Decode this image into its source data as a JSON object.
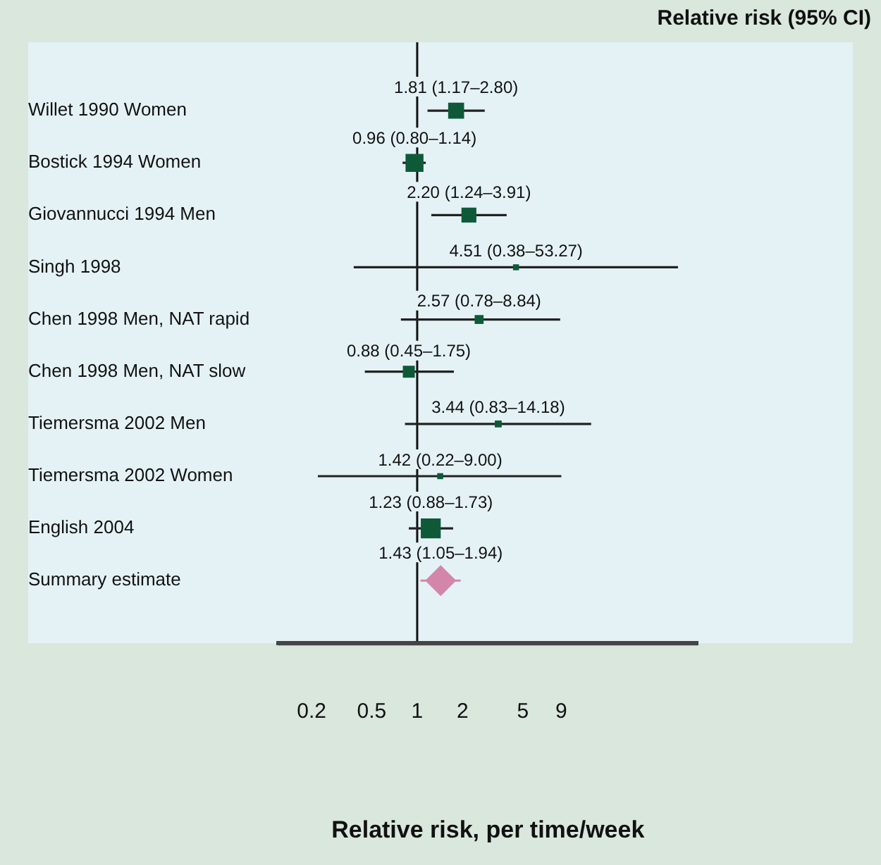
{
  "chart_data": {
    "type": "bubble",
    "orientation": "horizontal",
    "xlabel": "Relative risk, per time/week",
    "annotations": [
      "Relative risk (95% CI)"
    ],
    "categories": [
      "Willet 1990 Women",
      "Bostick 1994 Women",
      "Giovannucci 1994 Men",
      "Singh 1998",
      "Chen 1998 Men, NAT rapid",
      "Chen 1998 Men, NAT slow",
      "Tiemersma 2002 Men",
      "Tiemersma 2002 Women",
      "English 2004",
      "Summary estimate"
    ],
    "series": [
      {
        "type": "bubble",
        "color": "#0e5a38",
        "marker": "square",
        "values": [
          1.81,
          0.96,
          2.2,
          4.51,
          2.57,
          0.88,
          3.44,
          1.42,
          1.23,
          null
        ],
        "sizes": [
          0.64,
          0.81,
          0.56,
          0.09,
          0.2,
          0.36,
          0.12,
          0.09,
          1,
          null
        ],
        "errors": [
          [
            1.17,
            2.8
          ],
          [
            0.8,
            1.14
          ],
          [
            1.24,
            3.91
          ],
          [
            0.38,
            53.27
          ],
          [
            0.78,
            8.84
          ],
          [
            0.45,
            1.75
          ],
          [
            0.83,
            14.18
          ],
          [
            0.22,
            9.0
          ],
          [
            0.88,
            1.73
          ],
          null
        ],
        "value_labels": [
          "1.81 (1.17–2.80)",
          "0.96 (0.80–1.14)",
          "2.20 (1.24–3.91)",
          "4.51 (0.38–53.27)",
          "2.57 (0.78–8.84)",
          "0.88 (0.45–1.75)",
          "3.44 (0.83–14.18)",
          "1.42 (0.22–9.00)",
          "1.23 (0.88–1.73)",
          null
        ]
      },
      {
        "type": "scatter",
        "color": "#d486aa",
        "marker": "diamond",
        "values": [
          null,
          null,
          null,
          null,
          null,
          null,
          null,
          null,
          null,
          1.43
        ],
        "errors": [
          null,
          null,
          null,
          null,
          null,
          null,
          null,
          null,
          null,
          [
            1.05,
            1.94
          ]
        ],
        "value_labels": [
          null,
          null,
          null,
          null,
          null,
          null,
          null,
          null,
          null,
          "1.43 (1.05–1.94)"
        ]
      }
    ],
    "log": "x",
    "xlim": [
      0.12,
      72
    ],
    "xticks": [
      0.2,
      0.5,
      1,
      2,
      5,
      9
    ],
    "ref_lines": [
      {
        "axis": "x",
        "value": 1,
        "color": "#111111"
      }
    ],
    "grid": false,
    "legend": false
  }
}
